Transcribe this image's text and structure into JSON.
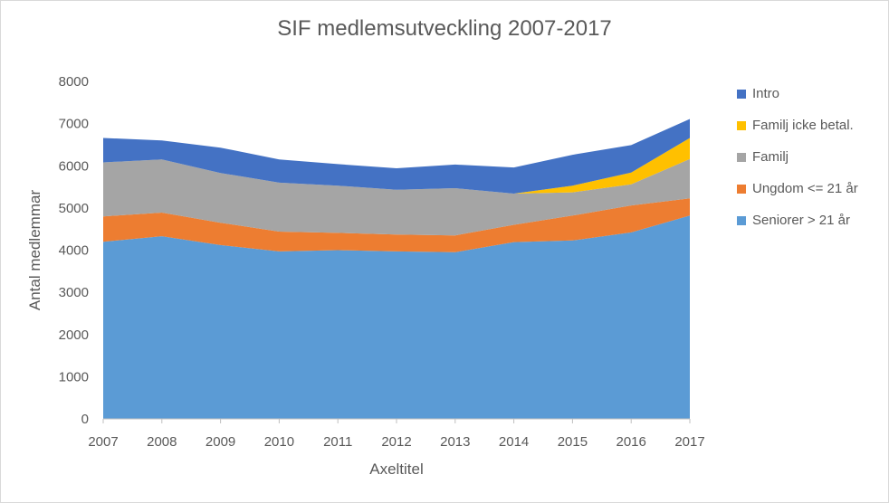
{
  "chart_data": {
    "type": "area",
    "stacked": true,
    "title": "SIF medlemsutveckling 2007-2017",
    "xlabel": "Axeltitel",
    "ylabel": "Antal medlemmar",
    "ylim": [
      0,
      8000
    ],
    "yticks": [
      "0",
      "1000",
      "2000",
      "3000",
      "4000",
      "5000",
      "6000",
      "7000",
      "8000"
    ],
    "categories": [
      "2007",
      "2008",
      "2009",
      "2010",
      "2011",
      "2012",
      "2013",
      "2014",
      "2015",
      "2016",
      "2017"
    ],
    "grid": false,
    "legend_position": "right",
    "series": [
      {
        "name": "Seniorer > 21 år",
        "color": "#5b9bd5",
        "values": [
          4200,
          4330,
          4120,
          3970,
          4000,
          3970,
          3950,
          4190,
          4230,
          4420,
          4820
        ]
      },
      {
        "name": "Ungdom <= 21 år",
        "color": "#ed7d31",
        "values": [
          600,
          560,
          530,
          470,
          410,
          400,
          400,
          410,
          590,
          640,
          410
        ]
      },
      {
        "name": "Familj",
        "color": "#a5a5a5",
        "values": [
          1280,
          1260,
          1180,
          1160,
          1120,
          1060,
          1120,
          740,
          550,
          500,
          930
        ]
      },
      {
        "name": "Familj icke betal.",
        "color": "#ffc000",
        "values": [
          0,
          0,
          0,
          0,
          0,
          0,
          0,
          0,
          160,
          280,
          500
        ]
      },
      {
        "name": "Intro",
        "color": "#4472c4",
        "values": [
          580,
          450,
          600,
          550,
          510,
          510,
          560,
          620,
          730,
          650,
          450
        ]
      }
    ]
  }
}
